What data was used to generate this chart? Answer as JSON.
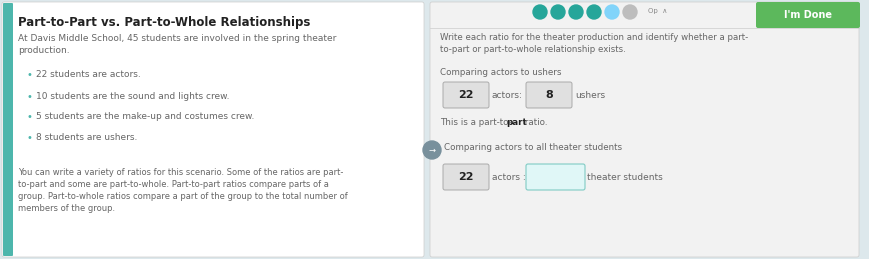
{
  "bg_color": "#dde8ec",
  "left_bg": "#ffffff",
  "right_bg": "#f0f0f0",
  "title": "Part-to-Part vs. Part-to-Whole Relationships",
  "intro": "At Davis Middle School, 45 students are involved in the spring theater\nproduction.",
  "bullets": [
    "22 students are actors.",
    "10 students are the sound and lights crew.",
    "5 students are the make-up and costumes crew.",
    "8 students are ushers."
  ],
  "footer_plain": "You can write a variety of ratios for this scenario. Some of the ratios are ",
  "footer_bold1": "part-\nto-part",
  "footer_mid": " and some are ",
  "footer_bold2": "part-to-whole",
  "footer_end": ". Part-to-part ratios compare parts of a\ngroup. Part-to-whole ratios compare a part of the group to the total number of\nmembers of the group.",
  "right_instruction": "Write each ratio for the theater production and identify whether a part-\nto-part or part-to-whole relationship exists.",
  "section1_label": "Comparing actors to ushers",
  "box1_val": "22",
  "label1": "actors:",
  "box2_val": "8",
  "label2": "ushers",
  "part_to_part_text1": "This is a part-to- ",
  "part_to_part_bold": "part",
  "part_to_part_text2": " ratio.",
  "section2_label": "Comparing actors to all theater students",
  "box3_val": "22",
  "label3": "actors :",
  "label4": "theater students",
  "imdone_text": "I'm Done",
  "imdone_bg": "#5cb85c",
  "dot_colors": [
    "#26a69a",
    "#26a69a",
    "#26a69a",
    "#26a69a",
    "#81d4fa",
    "#bdbdbd"
  ],
  "teal_color": "#4db6ac",
  "dark_text": "#222222",
  "gray_text": "#444444",
  "light_gray_text": "#666666"
}
